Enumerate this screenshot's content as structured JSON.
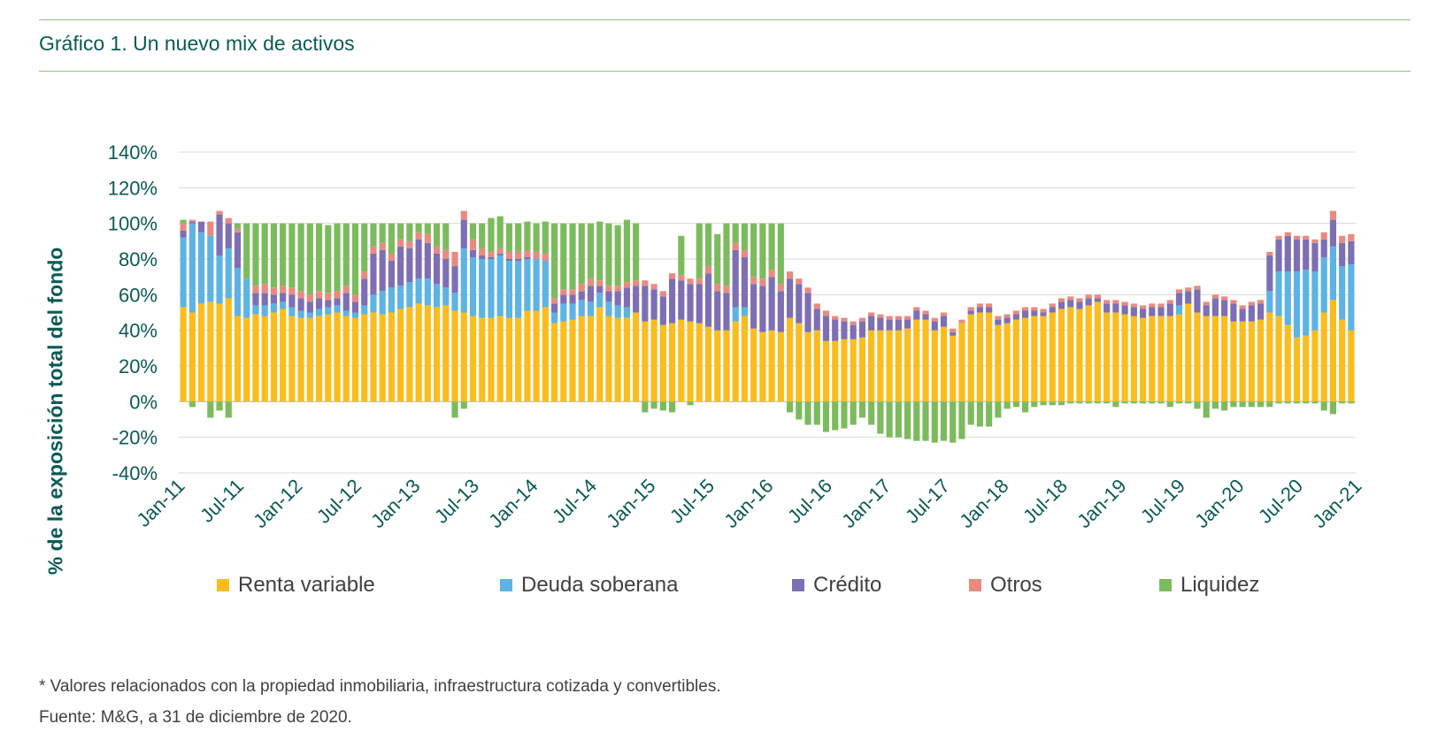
{
  "title": "Gráfico 1. Un nuevo mix de activos",
  "footnote": "* Valores relacionados con la propiedad inmobiliaria, infraestructura cotizada y convertibles.",
  "source": "Fuente: M&G, a 31 de diciembre de 2020.",
  "colors": {
    "renta_variable": "#fbbd1d",
    "deuda_soberana": "#5cb3e4",
    "credito": "#7d6fb3",
    "otros": "#e98a80",
    "liquidez": "#7cbb5d",
    "text": "#0b5a55",
    "grid": "#d9d9d9"
  },
  "chart_data": {
    "type": "bar",
    "stacked": true,
    "title": "Gráfico 1. Un nuevo mix de activos",
    "ylabel": "% de la exposición total del fondo",
    "xlabel": "",
    "ylim": [
      -40,
      140
    ],
    "yticks": [
      140,
      120,
      100,
      80,
      60,
      40,
      20,
      0,
      -20,
      -40
    ],
    "ytick_labels": [
      "140%",
      "120%",
      "100%",
      "80%",
      "60%",
      "40%",
      "20%",
      "0%",
      "-20%",
      "-40%"
    ],
    "xtick_labels": [
      "Jan-11",
      "Jul-11",
      "Jan-12",
      "Jul-12",
      "Jan-13",
      "Jul-13",
      "Jan-14",
      "Jul-14",
      "Jan-15",
      "Jul-15",
      "Jan-16",
      "Jul-16",
      "Jan-17",
      "Jul-17",
      "Jan-18",
      "Jul-18",
      "Jan-19",
      "Jul-19",
      "Jan-20",
      "Jul-20",
      "Jan-21"
    ],
    "grid": true,
    "legend": "bottom",
    "x_start": "Jan-11",
    "x_end": "Jan-21",
    "series": [
      {
        "name": "Renta variable",
        "color": "#fbbd1d",
        "values": [
          53,
          50,
          55,
          56,
          55,
          58,
          48,
          47,
          49,
          48,
          50,
          52,
          48,
          47,
          47,
          48,
          49,
          50,
          48,
          47,
          49,
          50,
          49,
          50,
          52,
          53,
          55,
          54,
          53,
          54,
          51,
          50,
          48,
          47,
          47,
          48,
          47,
          47,
          51,
          51,
          53,
          44,
          45,
          46,
          48,
          48,
          53,
          48,
          47,
          47,
          50,
          45,
          46,
          43,
          44,
          46,
          45,
          44,
          42,
          40,
          40,
          45,
          48,
          41,
          39,
          40,
          39,
          47,
          44,
          39,
          40,
          34,
          34,
          35,
          35,
          36,
          40,
          40,
          40,
          40,
          41,
          46,
          46,
          40,
          42,
          37,
          44,
          49,
          50,
          50,
          43,
          44,
          46,
          47,
          48,
          48,
          50,
          52,
          53,
          52,
          54,
          56,
          50,
          50,
          49,
          48,
          47,
          48,
          48,
          48,
          49,
          55,
          50,
          48,
          48,
          48,
          45,
          45,
          45,
          46,
          50,
          48,
          43,
          36,
          37,
          40,
          50,
          57,
          46,
          40
        ]
      },
      {
        "name": "Deuda soberana",
        "color": "#5cb3e4",
        "values": [
          39,
          50,
          40,
          37,
          27,
          28,
          27,
          22,
          5,
          6,
          5,
          4,
          5,
          4,
          3,
          4,
          4,
          4,
          3,
          3,
          5,
          10,
          13,
          14,
          13,
          14,
          14,
          15,
          13,
          10,
          10,
          36,
          33,
          33,
          33,
          34,
          32,
          32,
          29,
          29,
          26,
          6,
          10,
          9,
          9,
          8,
          8,
          8,
          7,
          6,
          0,
          0,
          0,
          0,
          0,
          0,
          0,
          0,
          0,
          0,
          0,
          8,
          5,
          0,
          0,
          0,
          0,
          0,
          0,
          0,
          0,
          0,
          0,
          0,
          0,
          0,
          0,
          0,
          0,
          0,
          0,
          0,
          0,
          0,
          0,
          0,
          0,
          0,
          0,
          0,
          0,
          0,
          0,
          0,
          0,
          0,
          0,
          0,
          0,
          0,
          0,
          0,
          0,
          0,
          0,
          0,
          0,
          0,
          0,
          0,
          5,
          0,
          0,
          0,
          0,
          0,
          0,
          0,
          0,
          0,
          12,
          25,
          30,
          37,
          37,
          33,
          31,
          30,
          30,
          37
        ]
      },
      {
        "name": "Crédito",
        "color": "#7d6fb3",
        "values": [
          4,
          1,
          6,
          0,
          23,
          14,
          20,
          0,
          7,
          7,
          5,
          5,
          7,
          7,
          6,
          6,
          4,
          4,
          10,
          6,
          15,
          23,
          23,
          15,
          22,
          19,
          22,
          20,
          17,
          16,
          15,
          16,
          4,
          2,
          1,
          1,
          1,
          1,
          1,
          0,
          0,
          5,
          5,
          5,
          5,
          9,
          4,
          6,
          8,
          11,
          15,
          20,
          17,
          16,
          25,
          22,
          21,
          22,
          30,
          22,
          21,
          32,
          28,
          25,
          26,
          30,
          23,
          22,
          22,
          22,
          12,
          14,
          12,
          10,
          8,
          9,
          8,
          7,
          6,
          6,
          5,
          5,
          3,
          5,
          6,
          2,
          0,
          2,
          3,
          3,
          3,
          3,
          3,
          4,
          3,
          2,
          3,
          4,
          4,
          4,
          4,
          2,
          5,
          5,
          5,
          5,
          5,
          5,
          5,
          7,
          7,
          7,
          13,
          6,
          10,
          9,
          10,
          7,
          9,
          9,
          20,
          18,
          20,
          18,
          17,
          16,
          10,
          15,
          13,
          13
        ]
      },
      {
        "name": "Otros",
        "color": "#e98a80",
        "values": [
          4,
          1,
          0,
          8,
          2,
          3,
          2,
          0,
          4,
          5,
          4,
          4,
          4,
          4,
          4,
          4,
          4,
          4,
          4,
          4,
          4,
          4,
          4,
          4,
          4,
          4,
          4,
          5,
          4,
          5,
          8,
          5,
          6,
          4,
          3,
          3,
          4,
          4,
          4,
          4,
          4,
          3,
          3,
          3,
          4,
          4,
          3,
          3,
          3,
          3,
          3,
          3,
          3,
          3,
          3,
          3,
          3,
          3,
          4,
          4,
          4,
          4,
          4,
          4,
          4,
          4,
          4,
          4,
          3,
          3,
          3,
          3,
          2,
          2,
          2,
          2,
          2,
          2,
          2,
          2,
          2,
          2,
          2,
          2,
          2,
          2,
          2,
          2,
          2,
          2,
          2,
          2,
          2,
          2,
          2,
          2,
          2,
          2,
          2,
          2,
          2,
          2,
          2,
          2,
          2,
          2,
          2,
          2,
          2,
          2,
          2,
          2,
          2,
          2,
          2,
          2,
          2,
          2,
          2,
          2,
          2,
          2,
          2,
          2,
          2,
          2,
          4,
          5,
          4,
          4
        ]
      },
      {
        "name": "Liquidez",
        "color": "#7cbb5d",
        "values": [
          2,
          -3,
          0,
          -9,
          -5,
          -9,
          3,
          31,
          35,
          34,
          36,
          35,
          36,
          38,
          40,
          38,
          38,
          38,
          35,
          40,
          27,
          13,
          11,
          17,
          9,
          10,
          5,
          6,
          13,
          15,
          -9,
          -4,
          9,
          14,
          19,
          18,
          16,
          16,
          16,
          16,
          18,
          42,
          37,
          37,
          34,
          31,
          33,
          35,
          34,
          35,
          32,
          -6,
          -4,
          -5,
          -6,
          22,
          -2,
          31,
          24,
          28,
          35,
          11,
          15,
          30,
          31,
          26,
          34,
          -6,
          -10,
          -13,
          -13,
          -17,
          -16,
          -15,
          -13,
          -9,
          -13,
          -18,
          -20,
          -20,
          -21,
          -22,
          -22,
          -23,
          -22,
          -23,
          -21,
          -13,
          -14,
          -14,
          -9,
          -4,
          -3,
          -6,
          -3,
          -2,
          -2,
          -2,
          -1,
          -1,
          -1,
          -1,
          -1,
          -3,
          -1,
          -1,
          -1,
          -1,
          -1,
          -3,
          -1,
          -1,
          -4,
          -9,
          -4,
          -5,
          -3,
          -3,
          -3,
          -3,
          -3,
          -1,
          -1,
          -1,
          -1,
          -1,
          -5,
          -7,
          -1,
          -1
        ]
      }
    ]
  }
}
